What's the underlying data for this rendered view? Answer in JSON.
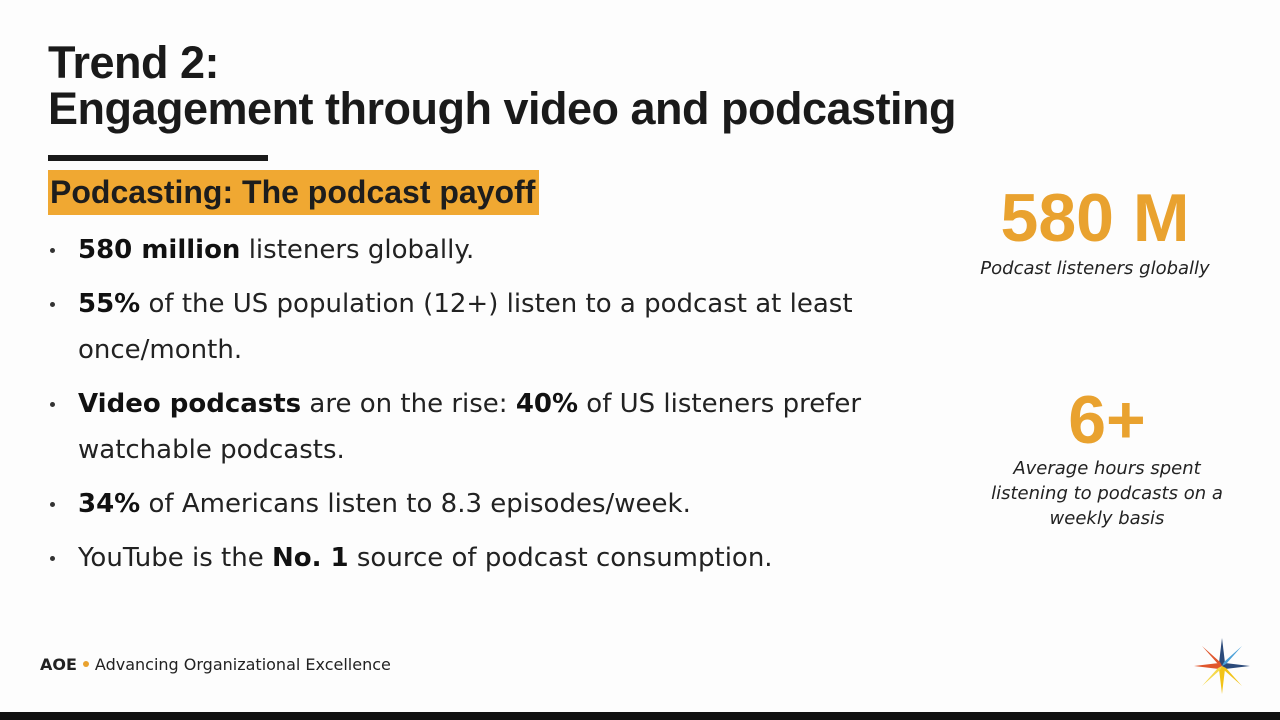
{
  "title": {
    "line1": "Trend 2:",
    "line2": "Engagement through video and podcasting"
  },
  "subtitle": "Podcasting: The podcast payoff",
  "bullets": [
    [
      {
        "text": "580 million",
        "bold": true
      },
      {
        "text": " listeners globally.",
        "bold": false
      }
    ],
    [
      {
        "text": "55%",
        "bold": true
      },
      {
        "text": " of the US population (12+) listen to a podcast at least once/month.",
        "bold": false
      }
    ],
    [
      {
        "text": "Video podcasts",
        "bold": true
      },
      {
        "text": " are on the rise: ",
        "bold": false
      },
      {
        "text": "40%",
        "bold": true
      },
      {
        "text": " of US listeners prefer watchable podcasts.",
        "bold": false
      }
    ],
    [
      {
        "text": "34%",
        "bold": true
      },
      {
        "text": " of Americans listen to 8.3 episodes/week.",
        "bold": false
      }
    ],
    [
      {
        "text": "YouTube is the ",
        "bold": false
      },
      {
        "text": "No. 1",
        "bold": true
      },
      {
        "text": " source of podcast consumption.",
        "bold": false
      }
    ]
  ],
  "stats": [
    {
      "value": "580 M",
      "caption": "Podcast listeners globally"
    },
    {
      "value": "6+",
      "caption": "Average hours spent listening to podcasts on a weekly basis"
    }
  ],
  "footer": {
    "brand": "AOE",
    "tagline": "Advancing Organizational Excellence"
  }
}
